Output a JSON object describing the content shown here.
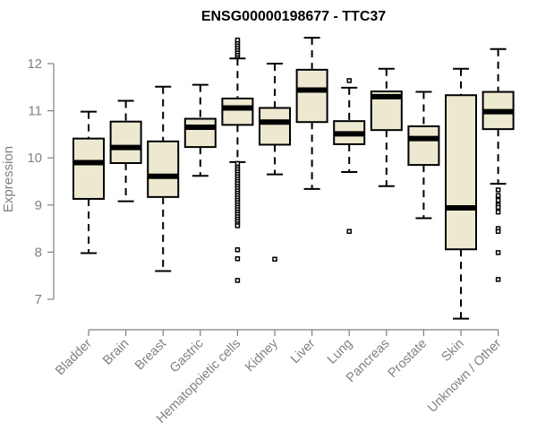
{
  "chart_data": {
    "type": "boxplot",
    "title": "ENSG00000198677 - TTC37",
    "xlabel": "",
    "ylabel": "Expression",
    "ylim": [
      7,
      12
    ],
    "yticks": [
      7,
      8,
      9,
      10,
      11,
      12
    ],
    "grid": false,
    "legend": "none",
    "box_fill": "#ede8d0",
    "categories": [
      "Bladder",
      "Brain",
      "Breast",
      "Gastric",
      "Hematopoietic cells",
      "Kidney",
      "Liver",
      "Lung",
      "Pancreas",
      "Prostate",
      "Skin",
      "Unknown / Other"
    ],
    "boxes": [
      {
        "name": "Bladder",
        "whisker_low": 7.98,
        "q1": 9.13,
        "median": 9.9,
        "q3": 10.41,
        "whisker_high": 10.98,
        "outliers": []
      },
      {
        "name": "Brain",
        "whisker_low": 9.08,
        "q1": 9.89,
        "median": 10.22,
        "q3": 10.77,
        "whisker_high": 11.21,
        "outliers": []
      },
      {
        "name": "Breast",
        "whisker_low": 7.6,
        "q1": 9.17,
        "median": 9.61,
        "q3": 10.35,
        "whisker_high": 11.51,
        "outliers": []
      },
      {
        "name": "Gastric",
        "whisker_low": 9.62,
        "q1": 10.23,
        "median": 10.65,
        "q3": 10.83,
        "whisker_high": 11.55,
        "outliers": []
      },
      {
        "name": "Hematopoietic cells",
        "whisker_low": 9.91,
        "q1": 10.7,
        "median": 11.06,
        "q3": 11.26,
        "whisker_high": 12.11,
        "outliers": [
          12.16,
          12.2,
          12.25,
          12.3,
          12.35,
          12.4,
          12.45,
          12.5,
          9.88,
          9.8,
          9.75,
          9.7,
          9.65,
          9.6,
          9.55,
          9.5,
          9.45,
          9.4,
          9.35,
          9.3,
          9.25,
          9.2,
          9.15,
          9.1,
          9.05,
          9.0,
          8.95,
          8.9,
          8.85,
          8.8,
          8.75,
          8.7,
          8.65,
          8.6,
          8.56,
          8.05,
          7.86,
          7.4
        ]
      },
      {
        "name": "Kidney",
        "whisker_low": 9.65,
        "q1": 10.28,
        "median": 10.76,
        "q3": 11.06,
        "whisker_high": 12.0,
        "outliers": [
          7.85
        ]
      },
      {
        "name": "Liver",
        "whisker_low": 9.34,
        "q1": 10.76,
        "median": 11.44,
        "q3": 11.87,
        "whisker_high": 12.55,
        "outliers": []
      },
      {
        "name": "Lung",
        "whisker_low": 9.7,
        "q1": 10.29,
        "median": 10.51,
        "q3": 10.78,
        "whisker_high": 11.49,
        "outliers": [
          11.64,
          8.44
        ]
      },
      {
        "name": "Pancreas",
        "whisker_low": 9.4,
        "q1": 10.59,
        "median": 11.3,
        "q3": 11.41,
        "whisker_high": 11.89,
        "outliers": []
      },
      {
        "name": "Prostate",
        "whisker_low": 8.72,
        "q1": 9.85,
        "median": 10.41,
        "q3": 10.67,
        "whisker_high": 11.4,
        "outliers": []
      },
      {
        "name": "Skin",
        "whisker_low": 6.59,
        "q1": 8.06,
        "median": 8.94,
        "q3": 11.33,
        "whisker_high": 11.89,
        "outliers": []
      },
      {
        "name": "Unknown / Other",
        "whisker_low": 9.45,
        "q1": 10.61,
        "median": 10.98,
        "q3": 11.4,
        "whisker_high": 12.31,
        "outliers": [
          9.32,
          9.2,
          9.1,
          9.0,
          8.95,
          8.85,
          8.5,
          8.44,
          7.99,
          7.42
        ]
      }
    ]
  }
}
